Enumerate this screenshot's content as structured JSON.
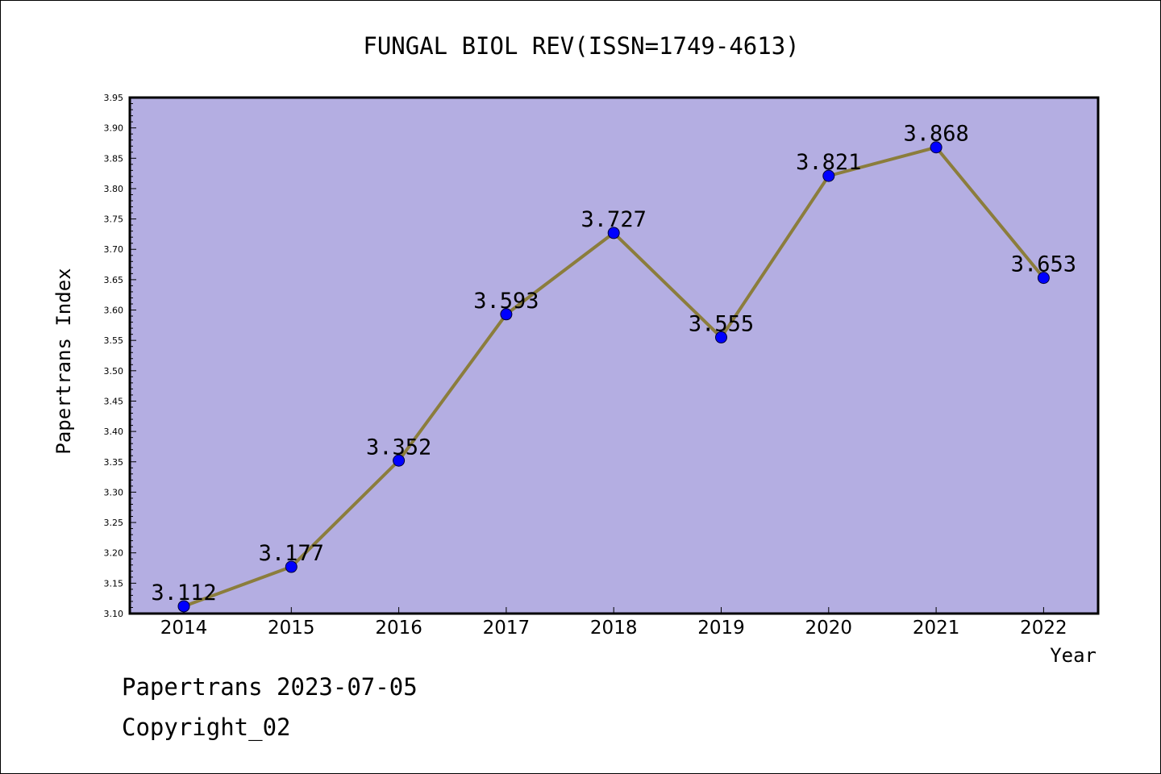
{
  "chart_data": {
    "type": "line",
    "title": "FUNGAL BIOL REV(ISSN=1749-4613)",
    "xlabel": "Year",
    "ylabel": "Papertrans Index",
    "categories": [
      "2014",
      "2015",
      "2016",
      "2017",
      "2018",
      "2019",
      "2020",
      "2021",
      "2022"
    ],
    "values": [
      3.112,
      3.177,
      3.352,
      3.593,
      3.727,
      3.555,
      3.821,
      3.868,
      3.653
    ],
    "data_labels": [
      "3.112",
      "3.177",
      "3.352",
      "3.593",
      "3.727",
      "3.555",
      "3.821",
      "3.868",
      "3.653"
    ],
    "ylim": [
      3.1,
      3.95
    ],
    "yticks": [
      "3.10",
      "3.15",
      "3.20",
      "3.25",
      "3.30",
      "3.35",
      "3.40",
      "3.45",
      "3.50",
      "3.55",
      "3.60",
      "3.65",
      "3.70",
      "3.75",
      "3.80",
      "3.85",
      "3.90",
      "3.95"
    ],
    "grid": false,
    "legend": "none",
    "colors": {
      "plot_background": "#b4aee2",
      "line": "#8b7d3c",
      "marker": "#0000ff"
    }
  },
  "footer": {
    "line1": "Papertrans 2023-07-05",
    "line2": "Copyright_02"
  }
}
